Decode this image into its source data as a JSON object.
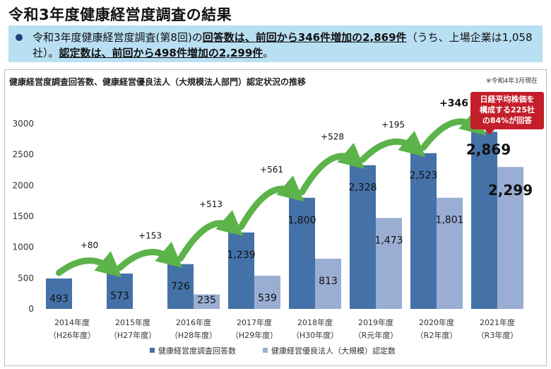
{
  "title": "令和3年度健康経営度調査の結果",
  "summary": {
    "p1": "令和3年度健康経営度調査(第8回)の",
    "hl1": "回答数は、前回から346件増加の2,869件",
    "p2": "（うち、上場企業は1,058社）。",
    "hl2": "認定数は、前回から498件増加の2,299件",
    "p3": "。"
  },
  "callout": {
    "line1": "日経平均株価を",
    "line2": "構成する225社",
    "line3": "の84%が回答"
  },
  "colors": {
    "series1": "#4472a8",
    "series2": "#9aaed4",
    "arrow": "#5bb34a",
    "callout": "#c41e2a"
  },
  "chart_data": {
    "type": "bar",
    "title": "健康経営度調査回答数、健康経営優良法人（大規模法人部門）認定状況の推移",
    "note": "※令和4年3月現在",
    "categories": [
      [
        "2014年度",
        "（H26年度）"
      ],
      [
        "2015年度",
        "（H27年度）"
      ],
      [
        "2016年度",
        "（H28年度）"
      ],
      [
        "2017年度",
        "（H29年度）"
      ],
      [
        "2018年度",
        "（H30年度）"
      ],
      [
        "2019年度",
        "（R元年度）"
      ],
      [
        "2020年度",
        "（R2年度）"
      ],
      [
        "2021年度",
        "（R3年度）"
      ]
    ],
    "series": [
      {
        "name": "健康経営度調査回答数",
        "values": [
          493,
          573,
          726,
          1239,
          1800,
          2328,
          2523,
          2869
        ]
      },
      {
        "name": "健康経営優良法人（大規模）認定数",
        "values": [
          null,
          null,
          235,
          539,
          813,
          1473,
          1801,
          2299
        ]
      }
    ],
    "value_labels": {
      "series1": [
        "493",
        "573",
        "726",
        "1,239",
        "1,800",
        "2,328",
        "2,523",
        "2,869"
      ],
      "series2": [
        "",
        "",
        "235",
        "539",
        "813",
        "1,473",
        "1,801",
        "2,299"
      ]
    },
    "increments": [
      "",
      "+80",
      "+153",
      "+513",
      "+561",
      "+528",
      "+195",
      "+346"
    ],
    "yticks": [
      0,
      500,
      1000,
      1500,
      2000,
      2500,
      3000
    ],
    "ylim": [
      0,
      3000
    ],
    "legend_position": "bottom",
    "grid": false
  }
}
